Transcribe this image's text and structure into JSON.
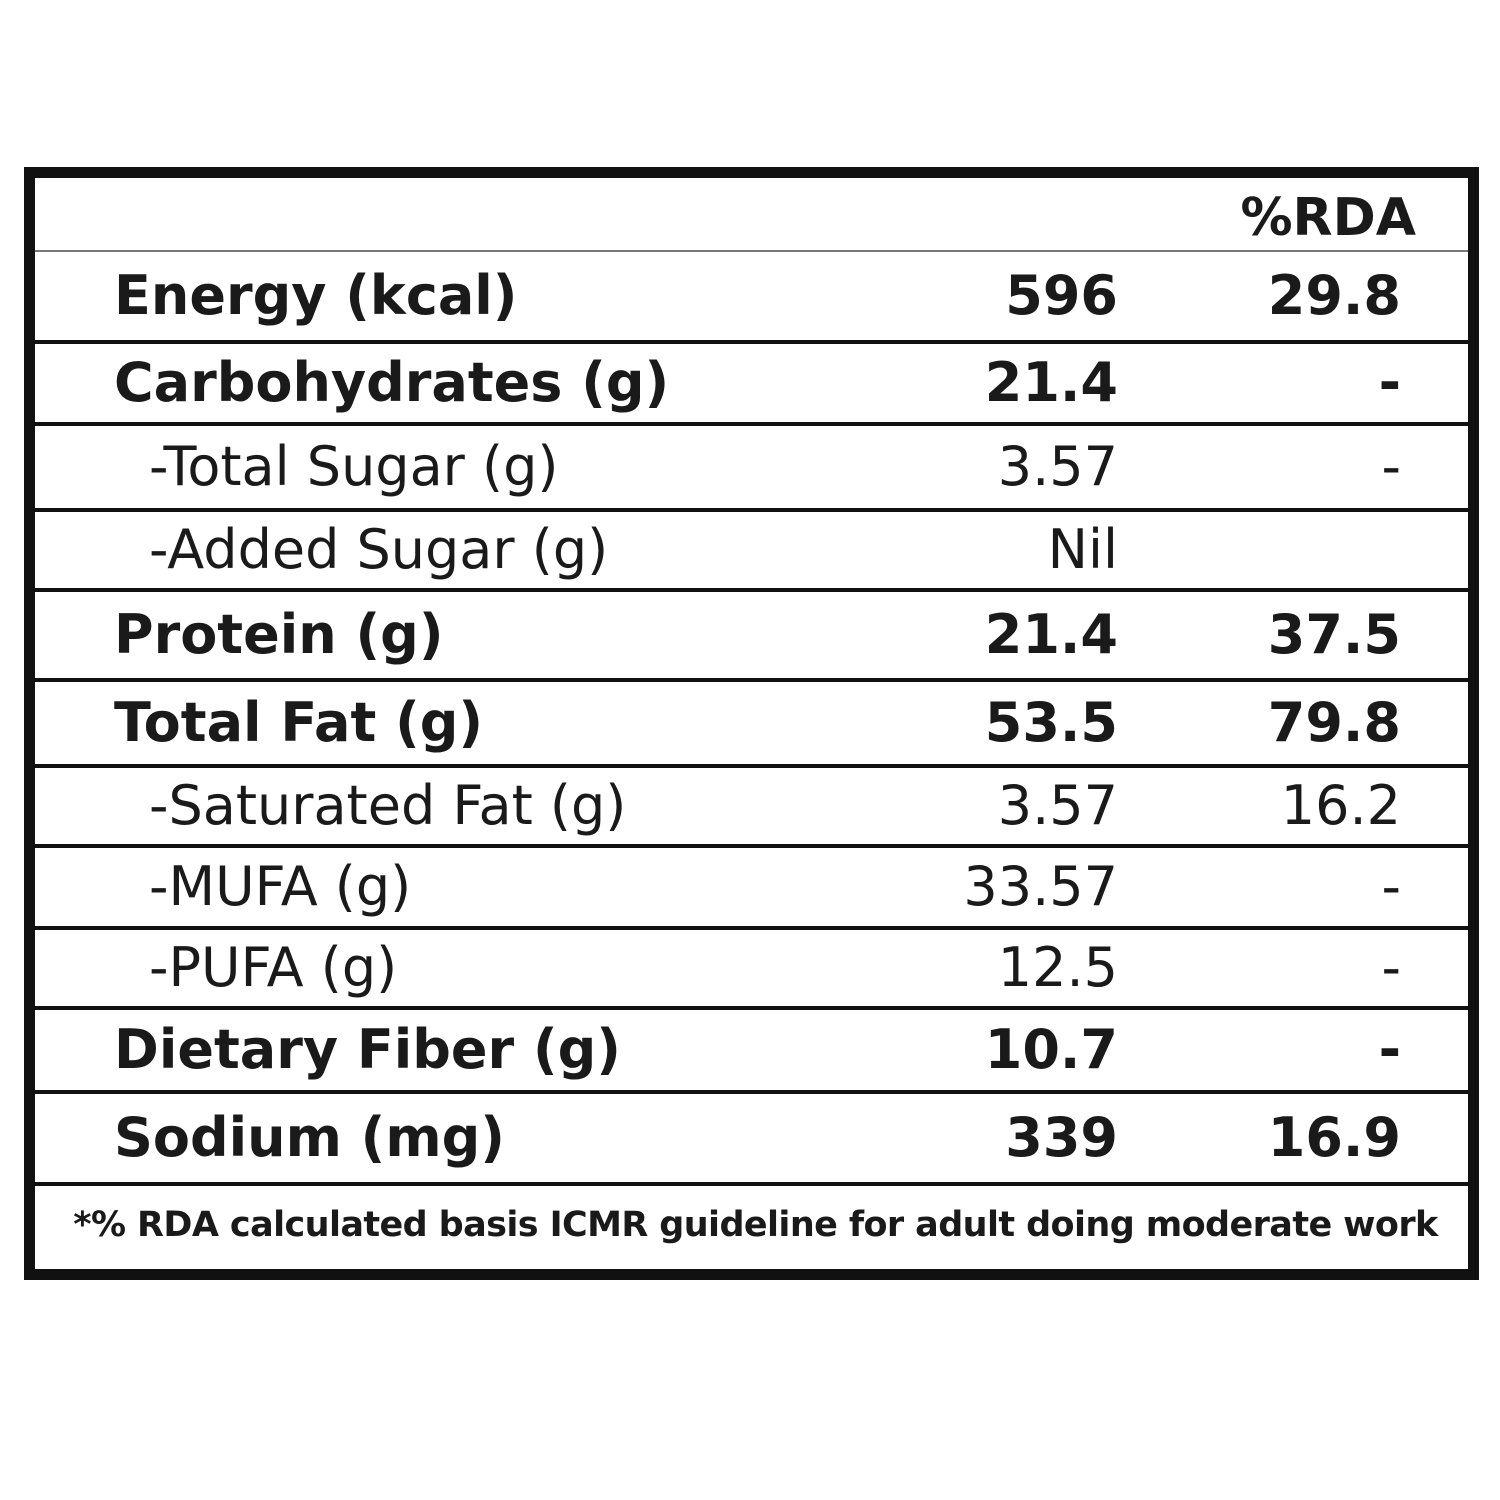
{
  "header": {
    "rda_label": "%RDA"
  },
  "rows": [
    {
      "label": "Energy (kcal)",
      "amount": "596",
      "rda": "29.8",
      "style": "bold"
    },
    {
      "label": "Carbohydrates (g)",
      "amount": "21.4",
      "rda": "-",
      "style": "bold"
    },
    {
      "label": "-Total Sugar (g)",
      "amount": "3.57",
      "rda": "-",
      "style": "sub"
    },
    {
      "label": "-Added Sugar (g)",
      "amount": "Nil",
      "rda": "",
      "style": "sub"
    },
    {
      "label": "Protein (g)",
      "amount": "21.4",
      "rda": "37.5",
      "style": "bold"
    },
    {
      "label": "Total Fat (g)",
      "amount": "53.5",
      "rda": "79.8",
      "style": "bold"
    },
    {
      "label": "-Saturated Fat (g)",
      "amount": "3.57",
      "rda": "16.2",
      "style": "sub"
    },
    {
      "label": "-MUFA (g)",
      "amount": "33.57",
      "rda": "-",
      "style": "sub"
    },
    {
      "label": "-PUFA (g)",
      "amount": "12.5",
      "rda": "-",
      "style": "sub"
    },
    {
      "label": "Dietary Fiber (g)",
      "amount": "10.7",
      "rda": "-",
      "style": "bold"
    },
    {
      "label": "Sodium (mg)",
      "amount": "339",
      "rda": "16.9",
      "style": "bold"
    }
  ],
  "footnote": "*% RDA calculated basis ICMR guideline for adult doing moderate work"
}
